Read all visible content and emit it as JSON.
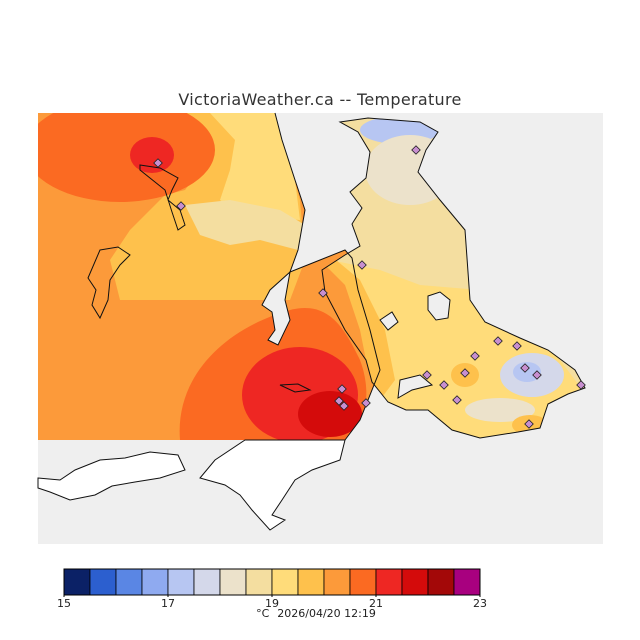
{
  "title": "VictoriaWeather.ca -- Temperature",
  "legend": {
    "unit": "°C",
    "tick_labels": [
      "15",
      "17",
      "19",
      "21",
      "23"
    ],
    "bins": [
      {
        "color": "#0b2166"
      },
      {
        "color": "#2c5fcf"
      },
      {
        "color": "#5a86e4"
      },
      {
        "color": "#8faaf0"
      },
      {
        "color": "#b7c6f2"
      },
      {
        "color": "#d4d8ea"
      },
      {
        "color": "#ece2cb"
      },
      {
        "color": "#f4dea0"
      },
      {
        "color": "#ffdc7a"
      },
      {
        "color": "#fec14c"
      },
      {
        "color": "#fc9a3a"
      },
      {
        "color": "#fb6a22"
      },
      {
        "color": "#ee2723"
      },
      {
        "color": "#d40b0b"
      },
      {
        "color": "#a30808"
      },
      {
        "color": "#a8007f"
      }
    ]
  },
  "timestamp": "2026/04/20 12:19"
}
